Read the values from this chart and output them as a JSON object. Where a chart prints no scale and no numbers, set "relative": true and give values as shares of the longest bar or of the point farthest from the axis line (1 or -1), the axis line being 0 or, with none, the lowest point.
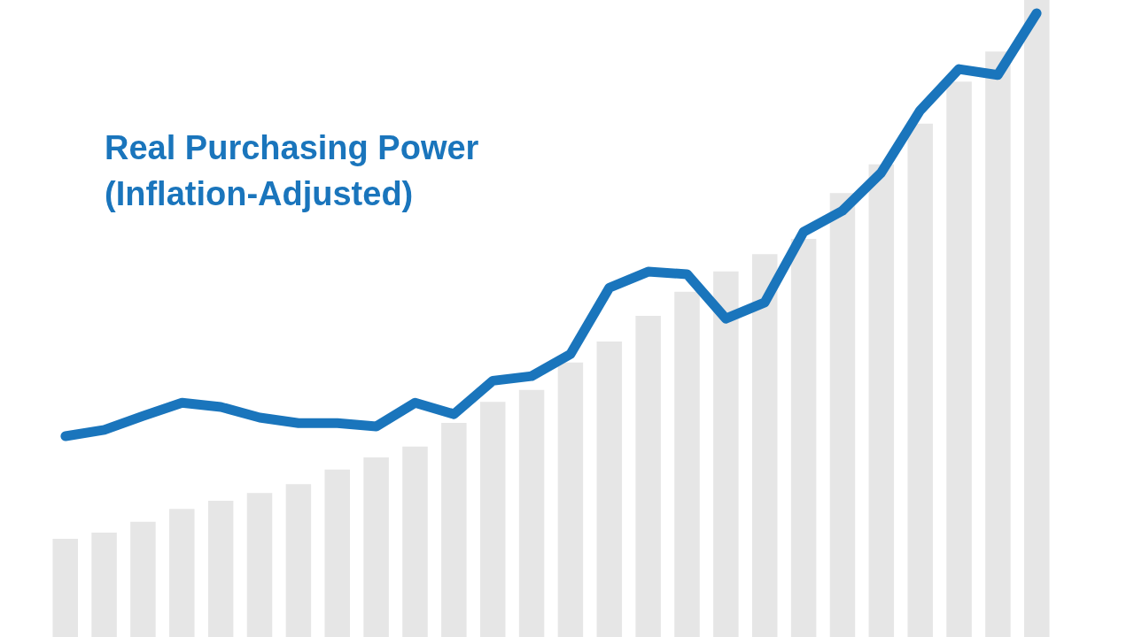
{
  "chart_data": [
    {
      "type": "bar",
      "relative": true,
      "categories": [
        null,
        null,
        null,
        null,
        null,
        null,
        null,
        null,
        null,
        null,
        null,
        null,
        null,
        null,
        null,
        null,
        null,
        null,
        null,
        null,
        null,
        null,
        null,
        null,
        null,
        null
      ],
      "color": "#e6e6e6",
      "values": [
        0.154,
        0.164,
        0.181,
        0.201,
        0.214,
        0.226,
        0.24,
        0.263,
        0.282,
        0.299,
        0.336,
        0.369,
        0.388,
        0.431,
        0.464,
        0.504,
        0.542,
        0.574,
        0.601,
        0.625,
        0.697,
        0.742,
        0.806,
        0.872,
        0.919,
        1
      ]
    },
    {
      "type": "line",
      "relative": true,
      "categories": [
        null,
        null,
        null,
        null,
        null,
        null,
        null,
        null,
        null,
        null,
        null,
        null,
        null,
        null,
        null,
        null,
        null,
        null,
        null,
        null,
        null,
        null,
        null,
        null,
        null,
        null
      ],
      "series": [
        {
          "name": "Real Purchasing Power (Inflation-Adjusted)",
          "color": "#1a75bc",
          "values": [
            0,
            0.015,
            0.048,
            0.079,
            0.069,
            0.044,
            0.031,
            0.031,
            0.023,
            0.079,
            0.052,
            0.131,
            0.142,
            0.194,
            0.351,
            0.389,
            0.383,
            0.278,
            0.316,
            0.483,
            0.533,
            0.623,
            0.77,
            0.868,
            0.854,
            1
          ]
        }
      ]
    }
  ]
}
